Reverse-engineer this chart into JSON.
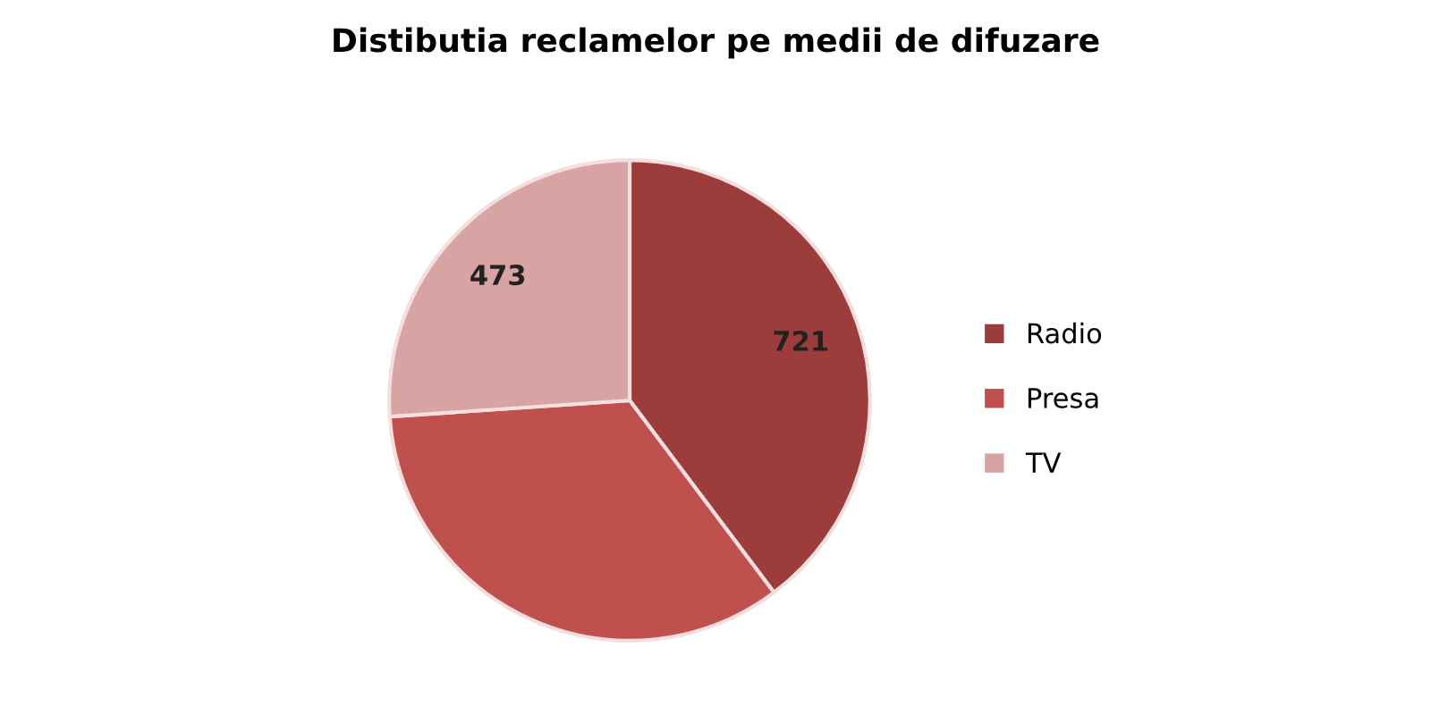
{
  "chart_data": {
    "type": "pie",
    "title": "Distibutia reclamelor pe medii de difuzare",
    "categories": [
      "Radio",
      "Presa",
      "TV"
    ],
    "values": [
      721,
      620,
      473
    ],
    "value_labels": [
      "721",
      null,
      "473"
    ],
    "colors": [
      "#9c3d3b",
      "#c0504d",
      "#d8a4a3"
    ],
    "legend": "right"
  }
}
